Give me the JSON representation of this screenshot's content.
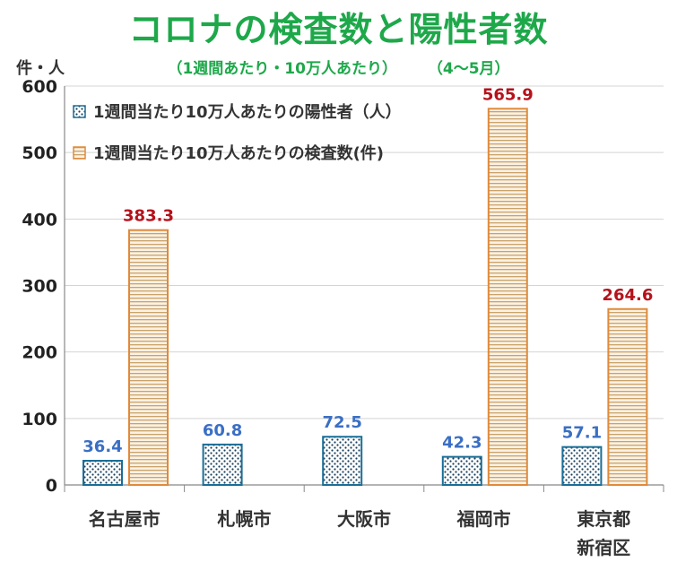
{
  "chart_data": {
    "type": "bar",
    "title": "コロナの検査数と陽性者数",
    "subtitle": "（1週間あたり・10万人あたり）",
    "period": "（4〜5月）",
    "ylabel": "件・人",
    "ylim": [
      0,
      600
    ],
    "yticks": [
      "0",
      "100",
      "200",
      "300",
      "400",
      "500",
      "600"
    ],
    "categories": [
      [
        "名古屋市"
      ],
      [
        "札幌市"
      ],
      [
        "大阪市"
      ],
      [
        "福岡市"
      ],
      [
        "東京都",
        "新宿区"
      ]
    ],
    "series": [
      {
        "name": "1週間当たり10万人あたりの陽性者（人）",
        "values": [
          36.4,
          60.8,
          72.5,
          42.3,
          57.1
        ],
        "color": "#1a6e96"
      },
      {
        "name": "1週間当たり10万人あたりの検査数(件)",
        "values": [
          383.3,
          null,
          null,
          565.9,
          264.6
        ],
        "color": "#e08a3a"
      }
    ],
    "legend_position": "top-left"
  }
}
